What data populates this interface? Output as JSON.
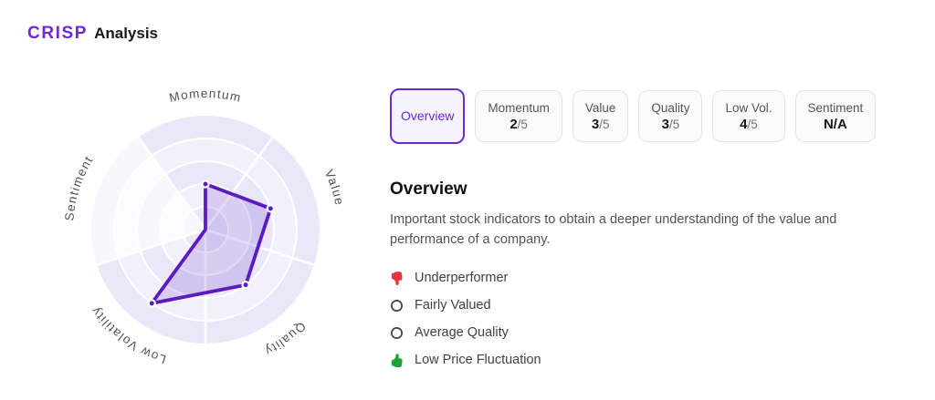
{
  "header": {
    "brand": "CRISP",
    "title": "Analysis"
  },
  "tabs": [
    {
      "label": "Overview",
      "selected": true
    },
    {
      "label": "Momentum",
      "score": "2",
      "max": "/5"
    },
    {
      "label": "Value",
      "score": "3",
      "max": "/5"
    },
    {
      "label": "Quality",
      "score": "3",
      "max": "/5"
    },
    {
      "label": "Low Vol.",
      "score": "4",
      "max": "/5"
    },
    {
      "label": "Sentiment",
      "score": "N/A",
      "max": ""
    }
  ],
  "section": {
    "title": "Overview",
    "description": "Important stock indicators to obtain a deeper understanding of the value and performance of a company."
  },
  "indicators": [
    {
      "icon": "thumbs-down-icon",
      "label": "Underperformer",
      "color": "#e5353f"
    },
    {
      "icon": "circle-icon",
      "label": "Fairly Valued",
      "color": "#3f3f46"
    },
    {
      "icon": "circle-icon",
      "label": "Average Quality",
      "color": "#3f3f46"
    },
    {
      "icon": "thumbs-up-icon",
      "label": "Low Price Fluctuation",
      "color": "#18a33c"
    }
  ],
  "chart_data": {
    "type": "radar",
    "axes": [
      "Momentum",
      "Value",
      "Quality",
      "Low Volatility",
      "Sentiment"
    ],
    "values": [
      2,
      3,
      3,
      4,
      null
    ],
    "na_axis": "Sentiment",
    "max": 5,
    "rings": 5,
    "legend": "none",
    "colors": {
      "band_dark": "#e9e7f8",
      "band_light": "#f2f1fb",
      "na_band_dark": "#f7f7fd",
      "na_band_light": "#fcfcfe",
      "grid_line": "#ffffff",
      "series_stroke": "#5a1bc2",
      "series_fill": "rgba(91,31,196,0.17)",
      "label_color": "#52525b",
      "accent": "#6d28d9"
    }
  }
}
